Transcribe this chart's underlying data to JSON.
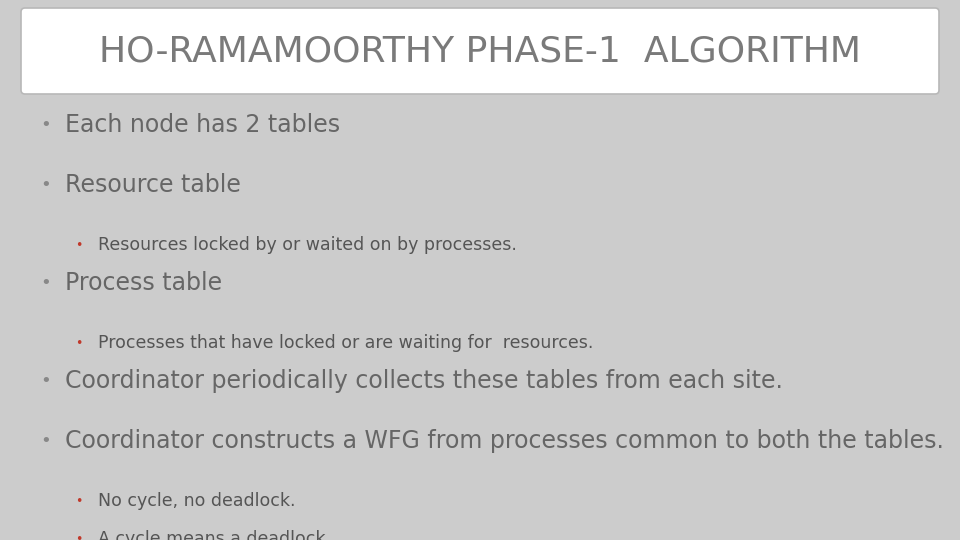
{
  "title": "HO-RAMAMOORTHY PHASE-1  ALGORITHM",
  "title_color": "#7a7a7a",
  "title_fontsize": 26,
  "title_box_color": "#ffffff",
  "bg_color": "#cccccc",
  "bullet_color_main": "#888888",
  "bullet_color_sub": "#c0392b",
  "main_bullet_fontsize": 17,
  "sub_bullet_fontsize": 12.5,
  "items": [
    {
      "level": 1,
      "text": "Each node has 2 tables",
      "color": "#666666"
    },
    {
      "level": 1,
      "text": "Resource table",
      "color": "#666666"
    },
    {
      "level": 2,
      "text": "Resources locked by or waited on by processes.",
      "color": "#555555"
    },
    {
      "level": 1,
      "text": "Process table",
      "color": "#666666"
    },
    {
      "level": 2,
      "text": "Processes that have locked or are waiting for  resources.",
      "color": "#555555"
    },
    {
      "level": 1,
      "text": "Coordinator periodically collects these tables from each site.",
      "color": "#666666"
    },
    {
      "level": 1,
      "text": "Coordinator constructs a WFG from processes common to both the tables.",
      "color": "#666666"
    },
    {
      "level": 2,
      "text": "No cycle, no deadlock.",
      "color": "#555555"
    },
    {
      "level": 2,
      "text": "A cycle means a deadlock",
      "color": "#555555"
    }
  ]
}
